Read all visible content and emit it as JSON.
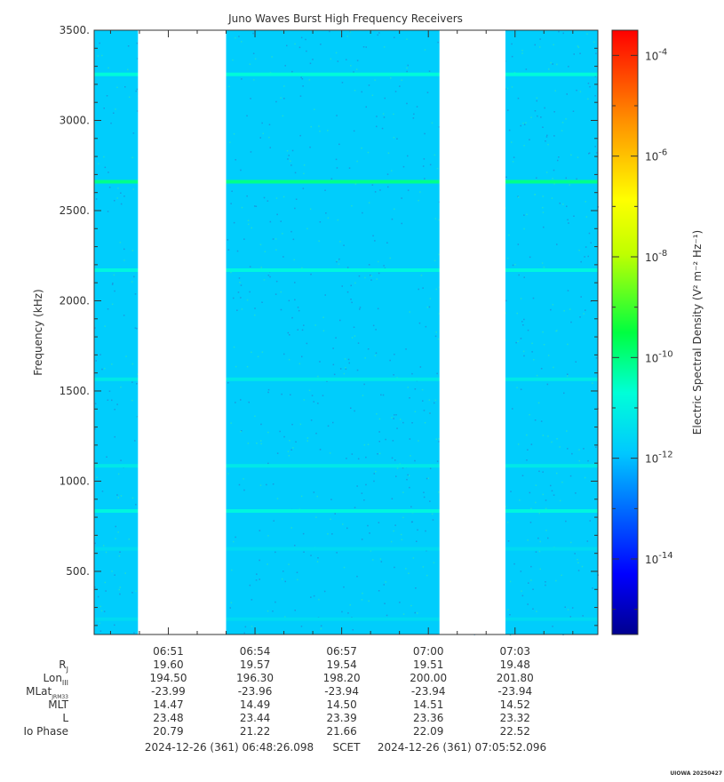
{
  "chart_data": {
    "type": "heatmap",
    "title": "Juno Waves Burst High Frequency Receivers",
    "ylabel": "Frequency (kHz)",
    "ylim": [
      150,
      3500
    ],
    "yticks": [
      "500.",
      "1000.",
      "1500.",
      "2000.",
      "2500.",
      "3000.",
      "3500."
    ],
    "ytick_values": [
      500,
      1000,
      1500,
      2000,
      2500,
      3000,
      3500
    ],
    "x_ticks": [
      "06:51",
      "06:54",
      "06:57",
      "07:00",
      "07:03"
    ],
    "time_range": [
      "06:48:26",
      "07:05:52"
    ],
    "data_gaps": [
      [
        "06:49:57",
        "06:53:00"
      ],
      [
        "07:00:23",
        "07:02:40"
      ]
    ],
    "background_level_log10": -11.8,
    "emission_lines": [
      {
        "freq_khz": 3255,
        "level_log10": -10.8
      },
      {
        "freq_khz": 2660,
        "level_log10": -10.1
      },
      {
        "freq_khz": 2170,
        "level_log10": -10.9
      },
      {
        "freq_khz": 1565,
        "level_log10": -11.2
      },
      {
        "freq_khz": 1085,
        "level_log10": -11.2
      },
      {
        "freq_khz": 835,
        "level_log10": -10.9
      },
      {
        "freq_khz": 625,
        "level_log10": -11.5
      },
      {
        "freq_khz": 235,
        "level_log10": -11.5
      }
    ],
    "colorbar": {
      "label": "Electric Spectral Density (V² m⁻² Hz⁻¹)",
      "range_log10": [
        -15.5,
        -3.5
      ],
      "ticks": [
        {
          "base": "10",
          "exp": "-4",
          "value": -4
        },
        {
          "base": "10",
          "exp": "-6",
          "value": -6
        },
        {
          "base": "10",
          "exp": "-8",
          "value": -8
        },
        {
          "base": "10",
          "exp": "-10",
          "value": -10
        },
        {
          "base": "10",
          "exp": "-12",
          "value": -12
        },
        {
          "base": "10",
          "exp": "-14",
          "value": -14
        }
      ]
    },
    "ephemeris": {
      "rows": [
        {
          "label": "R",
          "sub": "J",
          "values": [
            "19.60",
            "19.57",
            "19.54",
            "19.51",
            "19.48"
          ]
        },
        {
          "label": "Lon",
          "sub": "III",
          "values": [
            "194.50",
            "196.30",
            "198.20",
            "200.00",
            "201.80"
          ]
        },
        {
          "label": "MLat",
          "sub": "JRM33",
          "values": [
            "-23.99",
            "-23.96",
            "-23.94",
            "-23.94",
            "-23.94"
          ]
        },
        {
          "label": "MLT",
          "sub": "",
          "values": [
            "14.47",
            "14.49",
            "14.50",
            "14.51",
            "14.52"
          ]
        },
        {
          "label": "L",
          "sub": "",
          "values": [
            "23.48",
            "23.44",
            "23.39",
            "23.36",
            "23.32"
          ]
        },
        {
          "label": "Io Phase",
          "sub": "",
          "values": [
            "20.79",
            "21.22",
            "21.66",
            "22.09",
            "22.52"
          ]
        }
      ]
    },
    "footer": {
      "start": "2024-12-26 (361) 06:48:26.098",
      "mid": "SCET",
      "end": "2024-12-26 (361) 07:05:52.096"
    },
    "stamp": "UIOWA 20250427"
  }
}
